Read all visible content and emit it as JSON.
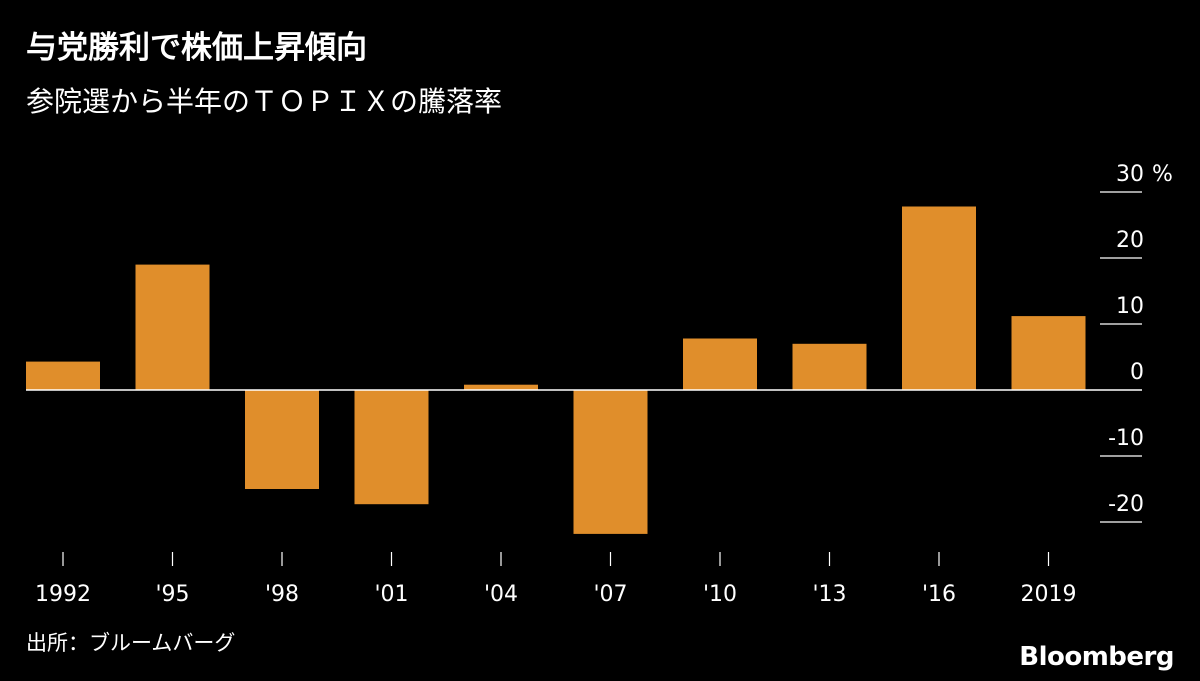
{
  "header": {
    "title": "与党勝利で株価上昇傾向",
    "subtitle": "参院選から半年のＴＯＰＩＸの騰落率"
  },
  "footer": {
    "source": "出所：ブルームバーグ",
    "brand": "Bloomberg"
  },
  "colors": {
    "background": "#000000",
    "bar": "#e08e2b",
    "axis": "#ffffff",
    "text": "#ffffff"
  },
  "chart_data": {
    "type": "bar",
    "categories": [
      "1992",
      "'95",
      "'98",
      "'01",
      "'04",
      "'07",
      "'10",
      "'13",
      "'16",
      "2019"
    ],
    "values": [
      4.3,
      19,
      -15,
      -17.3,
      0.8,
      -21.8,
      7.8,
      7,
      27.8,
      11.2
    ],
    "y_ticks": [
      30,
      20,
      10,
      0,
      -10,
      -20
    ],
    "y_unit": "%",
    "ylim": [
      -25,
      30
    ],
    "yaxis_position": "right",
    "grid": false,
    "legend": "none"
  }
}
